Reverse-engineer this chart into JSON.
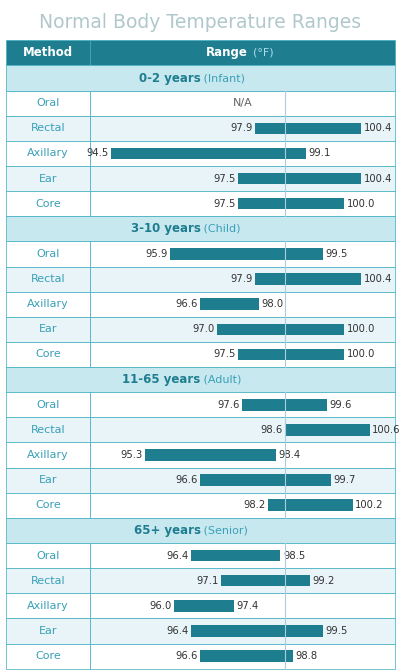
{
  "title": "Normal Body Temperature Ranges",
  "header_method": "Method",
  "header_range": "Range",
  "header_unit": " (°F)",
  "teal_header_bg": "#1e7d8f",
  "teal_bar": "#1e7d8f",
  "white": "#ffffff",
  "text_teal": "#3aa0b8",
  "text_dark": "#333333",
  "title_color": "#b0c8cc",
  "group_header_bg": "#c8e8f0",
  "alt_row_bg": "#e8f4f8",
  "border_color": "#3aacbe",
  "ref_line_color": "#aaccdd",
  "groups": [
    {
      "label": "0-2 years",
      "label_suffix": " (Infant)",
      "rows": [
        {
          "method": "Oral",
          "low": null,
          "high": null,
          "na": true
        },
        {
          "method": "Rectal",
          "low": 97.9,
          "high": 100.4,
          "na": false
        },
        {
          "method": "Axillary",
          "low": 94.5,
          "high": 99.1,
          "na": false
        },
        {
          "method": "Ear",
          "low": 97.5,
          "high": 100.4,
          "na": false
        },
        {
          "method": "Core",
          "low": 97.5,
          "high": 100.0,
          "na": false
        }
      ]
    },
    {
      "label": "3-10 years",
      "label_suffix": " (Child)",
      "rows": [
        {
          "method": "Oral",
          "low": 95.9,
          "high": 99.5,
          "na": false
        },
        {
          "method": "Rectal",
          "low": 97.9,
          "high": 100.4,
          "na": false
        },
        {
          "method": "Axillary",
          "low": 96.6,
          "high": 98.0,
          "na": false
        },
        {
          "method": "Ear",
          "low": 97.0,
          "high": 100.0,
          "na": false
        },
        {
          "method": "Core",
          "low": 97.5,
          "high": 100.0,
          "na": false
        }
      ]
    },
    {
      "label": "11-65 years",
      "label_suffix": " (Adult)",
      "rows": [
        {
          "method": "Oral",
          "low": 97.6,
          "high": 99.6,
          "na": false
        },
        {
          "method": "Rectal",
          "low": 98.6,
          "high": 100.6,
          "na": false
        },
        {
          "method": "Axillary",
          "low": 95.3,
          "high": 98.4,
          "na": false
        },
        {
          "method": "Ear",
          "low": 96.6,
          "high": 99.7,
          "na": false
        },
        {
          "method": "Core",
          "low": 98.2,
          "high": 100.2,
          "na": false
        }
      ]
    },
    {
      "label": "65+ years",
      "label_suffix": " (Senior)",
      "rows": [
        {
          "method": "Oral",
          "low": 96.4,
          "high": 98.5,
          "na": false
        },
        {
          "method": "Rectal",
          "low": 97.1,
          "high": 99.2,
          "na": false
        },
        {
          "method": "Axillary",
          "low": 96.0,
          "high": 97.4,
          "na": false
        },
        {
          "method": "Ear",
          "low": 96.4,
          "high": 99.5,
          "na": false
        },
        {
          "method": "Core",
          "low": 96.6,
          "high": 98.8,
          "na": false
        }
      ]
    }
  ],
  "bar_min": 94.0,
  "bar_max": 101.2,
  "ref_line": 98.6
}
